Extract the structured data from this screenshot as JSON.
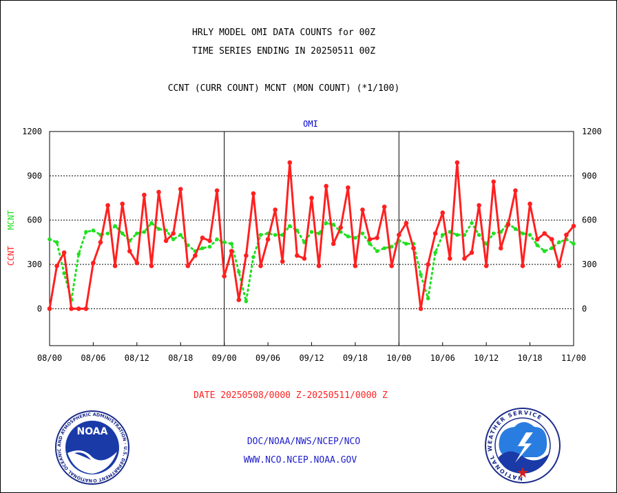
{
  "header": {
    "title_line1": "HRLY MODEL OMI DATA COUNTS for 00Z",
    "title_line2": "TIME SERIES ENDING IN 20250511 00Z",
    "subtitle": "CCNT (CURR COUNT) MCNT (MON COUNT) (*1/100)",
    "panel_label": "OMI"
  },
  "footer": {
    "date_range": "DATE 20250508/0000 Z-20250511/0000 Z",
    "org_line": "DOC/NOAA/NWS/NCEP/NCO",
    "url_line": "WWW.NCO.NCEP.NOAA.GOV",
    "noaa_logo_text": "NOAA",
    "noaa_seal_ring_text": "NATIONAL OCEANIC AND ATMOSPHERIC ADMINISTRATION · U.S. DEPARTMENT OF COMMERCE",
    "nws_seal_ring_text": "NATIONAL WEATHER SERVICE"
  },
  "colors": {
    "ccnt": "#ff2020",
    "mcnt": "#20e020",
    "axis_text": "#000000",
    "panel_label": "#0000cc",
    "footer_date": "#ff2020",
    "footer_org": "#2020cc"
  },
  "chart_data": {
    "type": "line",
    "ylim": [
      -250,
      1200
    ],
    "yticks": [
      0,
      300,
      600,
      900,
      1200
    ],
    "xticks": [
      "08/00",
      "08/06",
      "08/12",
      "08/18",
      "09/00",
      "09/06",
      "09/12",
      "09/18",
      "10/00",
      "10/06",
      "10/12",
      "10/18",
      "11/00"
    ],
    "xlabel": "",
    "ylabel_left": [
      "CCNT",
      "MCNT"
    ],
    "hours": 72,
    "series": [
      {
        "name": "CCNT",
        "style": "solid",
        "values": [
          0,
          290,
          380,
          0,
          0,
          0,
          310,
          450,
          700,
          290,
          710,
          390,
          310,
          770,
          290,
          790,
          460,
          510,
          810,
          290,
          360,
          480,
          460,
          800,
          220,
          390,
          60,
          360,
          780,
          290,
          470,
          670,
          320,
          990,
          360,
          340,
          750,
          290,
          830,
          440,
          550,
          820,
          290,
          670,
          470,
          480,
          690,
          290,
          500,
          580,
          410,
          0,
          300,
          510,
          650,
          340,
          990,
          340,
          380,
          700,
          290,
          860,
          410,
          570,
          800,
          290,
          710,
          470,
          510,
          470,
          290,
          500,
          560
        ]
      },
      {
        "name": "MCNT",
        "style": "dotted",
        "values": [
          470,
          450,
          240,
          60,
          370,
          520,
          530,
          500,
          510,
          560,
          510,
          460,
          510,
          520,
          580,
          540,
          530,
          470,
          500,
          430,
          390,
          410,
          420,
          470,
          450,
          440,
          250,
          50,
          350,
          500,
          510,
          500,
          500,
          560,
          530,
          450,
          520,
          510,
          580,
          570,
          520,
          490,
          480,
          510,
          440,
          390,
          410,
          420,
          460,
          440,
          440,
          230,
          70,
          380,
          500,
          520,
          500,
          500,
          580,
          500,
          440,
          510,
          520,
          580,
          540,
          510,
          500,
          430,
          390,
          410,
          450,
          470,
          440
        ]
      }
    ]
  }
}
